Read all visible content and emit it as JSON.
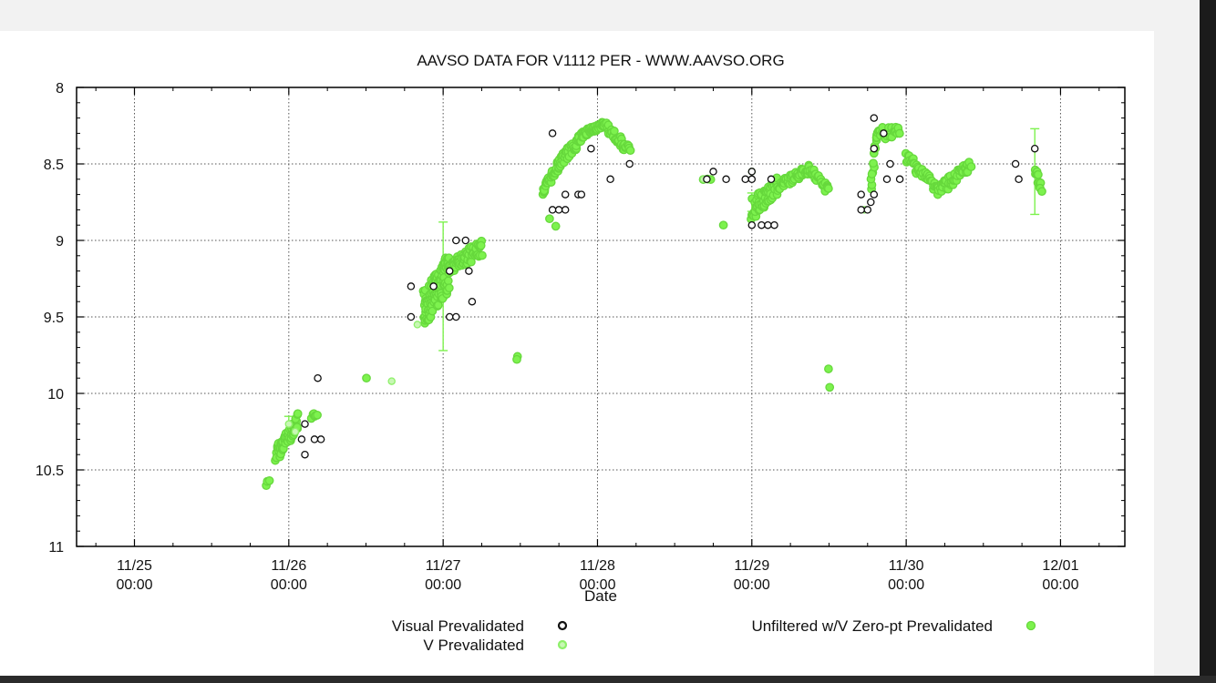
{
  "window": {
    "accent": "#ffffff",
    "chrome": "#f2f2f2"
  },
  "chart_data": {
    "type": "scatter",
    "title": "AAVSO DATA FOR V1112 PER - WWW.AAVSO.ORG",
    "xlabel": "Date",
    "ylabel": "",
    "x_unit": "date (Nov 2020)",
    "xlim": [
      "11/24 15:00",
      "12/01 10:00"
    ],
    "ylim": [
      11,
      8
    ],
    "y_inverted": true,
    "grid": true,
    "x_ticks": [
      {
        "x": "11/25 00:00",
        "line1": "11/25",
        "line2": "00:00"
      },
      {
        "x": "11/26 00:00",
        "line1": "11/26",
        "line2": "00:00"
      },
      {
        "x": "11/27 00:00",
        "line1": "11/27",
        "line2": "00:00"
      },
      {
        "x": "11/28 00:00",
        "line1": "11/28",
        "line2": "00:00"
      },
      {
        "x": "11/29 00:00",
        "line1": "11/29",
        "line2": "00:00"
      },
      {
        "x": "11/30 00:00",
        "line1": "11/30",
        "line2": "00:00"
      },
      {
        "x": "12/01 00:00",
        "line1": "12/01",
        "line2": "00:00"
      }
    ],
    "y_ticks": [
      "8",
      "8.5",
      "9",
      "9.5",
      "10",
      "10.5",
      "11"
    ],
    "legend": [
      {
        "label": "Visual Prevalidated",
        "color": "#111111",
        "marker": "hollow-dark-circle"
      },
      {
        "label": "V Prevalidated",
        "color": "#8ef06a",
        "marker": "hollow-green-circle"
      },
      {
        "label": "Unfiltered w/V Zero-pt Prevalidated",
        "color": "#7df24e",
        "marker": "filled-green-circle"
      }
    ],
    "legend_position": "bottom",
    "series": [
      {
        "name": "Visual Prevalidated",
        "color": "#111111",
        "points": [
          [
            "11/26 02:00",
            10.3
          ],
          [
            "11/26 02:30",
            10.2
          ],
          [
            "11/26 02:30",
            10.4
          ],
          [
            "11/26 04:00",
            10.3
          ],
          [
            "11/26 04:30",
            9.9
          ],
          [
            "11/26 05:00",
            10.3
          ],
          [
            "11/26 19:00",
            9.3
          ],
          [
            "11/26 19:00",
            9.5
          ],
          [
            "11/26 22:30",
            9.3
          ],
          [
            "11/27 01:00",
            9.2
          ],
          [
            "11/27 01:00",
            9.5
          ],
          [
            "11/27 02:00",
            9.5
          ],
          [
            "11/27 02:00",
            9.0
          ],
          [
            "11/27 03:30",
            9.0
          ],
          [
            "11/27 04:00",
            9.2
          ],
          [
            "11/27 04:30",
            9.4
          ],
          [
            "11/27 17:00",
            8.3
          ],
          [
            "11/27 17:00",
            8.8
          ],
          [
            "11/27 18:00",
            8.8
          ],
          [
            "11/27 19:00",
            8.7
          ],
          [
            "11/27 19:00",
            8.8
          ],
          [
            "11/27 21:00",
            8.7
          ],
          [
            "11/27 21:30",
            8.7
          ],
          [
            "11/27 23:00",
            8.4
          ],
          [
            "11/28 02:00",
            8.6
          ],
          [
            "11/28 05:00",
            8.5
          ],
          [
            "11/28 17:00",
            8.6
          ],
          [
            "11/28 18:00",
            8.55
          ],
          [
            "11/28 20:00",
            8.6
          ],
          [
            "11/28 23:00",
            8.6
          ],
          [
            "11/29 00:00",
            8.55
          ],
          [
            "11/29 00:00",
            8.6
          ],
          [
            "11/29 00:00",
            8.9
          ],
          [
            "11/29 01:30",
            8.9
          ],
          [
            "11/29 02:30",
            8.9
          ],
          [
            "11/29 03:00",
            8.6
          ],
          [
            "11/29 03:30",
            8.9
          ],
          [
            "11/29 17:00",
            8.7
          ],
          [
            "11/29 17:00",
            8.8
          ],
          [
            "11/29 18:00",
            8.8
          ],
          [
            "11/29 18:30",
            8.75
          ],
          [
            "11/29 19:00",
            8.7
          ],
          [
            "11/29 19:00",
            8.4
          ],
          [
            "11/29 19:00",
            8.2
          ],
          [
            "11/29 20:30",
            8.3
          ],
          [
            "11/29 21:00",
            8.6
          ],
          [
            "11/29 21:30",
            8.5
          ],
          [
            "11/29 23:00",
            8.6
          ],
          [
            "11/30 17:00",
            8.5
          ],
          [
            "11/30 17:30",
            8.6
          ],
          [
            "11/30 20:00",
            8.4
          ]
        ]
      },
      {
        "name": "V Prevalidated",
        "color": "#8ef06a",
        "points": [
          [
            "11/26 00:00",
            10.2
          ],
          [
            "11/26 01:00",
            10.25
          ],
          [
            "11/26 16:00",
            9.92
          ],
          [
            "11/26 20:00",
            9.55
          ],
          [
            "11/28 16:30",
            8.6
          ],
          [
            "11/29 17:30",
            8.8
          ],
          [
            "11/29 00:00",
            8.55
          ]
        ]
      },
      {
        "name": "Unfiltered w/V Zero-pt Prevalidated",
        "color": "#7df24e",
        "segments": [
          {
            "x0": "11/25 20:30",
            "x1": "11/25 21:00",
            "y0": 10.6,
            "y1": 10.57,
            "n": 3,
            "jitter": 0.02
          },
          {
            "x0": "11/25 22:00",
            "x1": "11/26 01:30",
            "y0": 10.4,
            "y1": 10.18,
            "n": 55,
            "jitter": 0.05
          },
          {
            "x0": "11/26 03:30",
            "x1": "11/26 04:30",
            "y0": 10.15,
            "y1": 10.15,
            "n": 6,
            "jitter": 0.02
          },
          {
            "x0": "11/26 12:00",
            "x1": "11/26 12:00",
            "y0": 9.9,
            "y1": 9.9,
            "n": 1,
            "jitter": 0.0
          },
          {
            "x0": "11/26 21:00",
            "x1": "11/27 01:00",
            "y0": 9.45,
            "y1": 9.2,
            "n": 120,
            "jitter": 0.12
          },
          {
            "x0": "11/27 01:00",
            "x1": "11/27 06:00",
            "y0": 9.18,
            "y1": 9.05,
            "n": 70,
            "jitter": 0.05
          },
          {
            "x0": "11/27 11:30",
            "x1": "11/27 11:30",
            "y0": 9.77,
            "y1": 9.77,
            "n": 2,
            "jitter": 0.02
          },
          {
            "x0": "11/27 15:30",
            "x1": "11/27 18:00",
            "y0": 8.68,
            "y1": 8.5,
            "n": 40,
            "jitter": 0.03
          },
          {
            "x0": "11/27 18:00",
            "x1": "11/27 22:00",
            "y0": 8.5,
            "y1": 8.3,
            "n": 50,
            "jitter": 0.04
          },
          {
            "x0": "11/27 22:00",
            "x1": "11/28 01:00",
            "y0": 8.3,
            "y1": 8.24,
            "n": 45,
            "jitter": 0.02
          },
          {
            "x0": "11/28 01:00",
            "x1": "11/28 05:00",
            "y0": 8.24,
            "y1": 8.42,
            "n": 35,
            "jitter": 0.03
          },
          {
            "x0": "11/27 16:30",
            "x1": "11/27 17:30",
            "y0": 8.85,
            "y1": 8.9,
            "n": 2,
            "jitter": 0.01
          },
          {
            "x0": "11/28 16:30",
            "x1": "11/28 17:30",
            "y0": 8.6,
            "y1": 8.6,
            "n": 3,
            "jitter": 0.01
          },
          {
            "x0": "11/28 19:30",
            "x1": "11/28 19:30",
            "y0": 8.9,
            "y1": 8.9,
            "n": 1,
            "jitter": 0.0
          },
          {
            "x0": "11/29 00:00",
            "x1": "11/29 04:00",
            "y0": 8.8,
            "y1": 8.65,
            "n": 60,
            "jitter": 0.07
          },
          {
            "x0": "11/29 04:00",
            "x1": "11/29 09:00",
            "y0": 8.65,
            "y1": 8.53,
            "n": 50,
            "jitter": 0.03
          },
          {
            "x0": "11/29 09:00",
            "x1": "11/29 12:00",
            "y0": 8.53,
            "y1": 8.68,
            "n": 25,
            "jitter": 0.03
          },
          {
            "x0": "11/29 12:00",
            "x1": "11/29 12:00",
            "y0": 9.84,
            "y1": 9.96,
            "n": 2,
            "jitter": 0.0
          },
          {
            "x0": "11/29 18:30",
            "x1": "11/29 19:30",
            "y0": 8.65,
            "y1": 8.3,
            "n": 15,
            "jitter": 0.03
          },
          {
            "x0": "11/29 19:30",
            "x1": "11/29 23:00",
            "y0": 8.3,
            "y1": 8.3,
            "n": 25,
            "jitter": 0.04
          },
          {
            "x0": "11/30 00:00",
            "x1": "11/30 05:00",
            "y0": 8.45,
            "y1": 8.67,
            "n": 40,
            "jitter": 0.04
          },
          {
            "x0": "11/30 05:00",
            "x1": "11/30 10:00",
            "y0": 8.67,
            "y1": 8.52,
            "n": 45,
            "jitter": 0.04
          },
          {
            "x0": "11/30 20:00",
            "x1": "11/30 21:00",
            "y0": 8.55,
            "y1": 8.65,
            "n": 12,
            "jitter": 0.04
          }
        ],
        "error_bars": [
          {
            "x": "11/27 00:00",
            "y": 9.05,
            "half": 0.17
          },
          {
            "x": "11/27 00:00",
            "y": 9.55,
            "half": 0.17
          },
          {
            "x": "11/29 00:00",
            "y": 8.75,
            "half": 0.06
          },
          {
            "x": "11/30 20:00",
            "y": 8.55,
            "half": 0.28
          },
          {
            "x": "11/26 00:00",
            "y": 10.2,
            "half": 0.05
          }
        ]
      }
    ]
  }
}
